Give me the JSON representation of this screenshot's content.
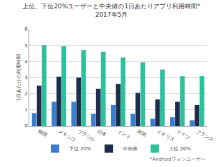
{
  "chart_data": {
    "type": "bar",
    "title": "上位、下位20%ユーザーと中央値の1日あたりアプリ利用時間*",
    "subtitle": "2017年5月",
    "y_label": "1日あたりの利用時間",
    "footnote": "*Androidフォンユーザー",
    "categories": [
      "韓国",
      "メキシコ",
      "ブラジル",
      "日本",
      "インド",
      "米国",
      "イギリス",
      "ドイツ",
      "フランス"
    ],
    "series": [
      {
        "name": "下位 20%",
        "color": "#3b7dd0",
        "values": [
          0.8,
          1.5,
          1.5,
          0.75,
          1.3,
          0.75,
          0.45,
          0.55,
          0.35
        ]
      },
      {
        "name": "中央値",
        "color": "#1e2b4d",
        "values": [
          2.5,
          3.05,
          3.0,
          2.3,
          2.6,
          2.05,
          1.65,
          1.5,
          1.3
        ]
      },
      {
        "name": "上位 20%",
        "color": "#2cc09c",
        "values": [
          5.0,
          4.95,
          4.7,
          4.6,
          4.25,
          3.95,
          3.5,
          3.1,
          3.1
        ]
      }
    ],
    "ylim": [
      0,
      6
    ],
    "yticks": [
      0,
      1,
      2,
      3,
      4,
      5,
      6
    ],
    "grid": true,
    "legend": "bottom"
  }
}
